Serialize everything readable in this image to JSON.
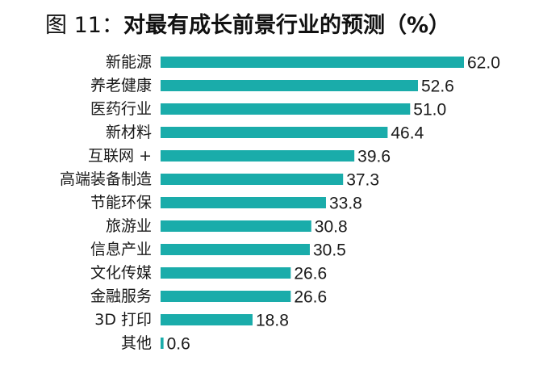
{
  "chart_data": {
    "type": "bar",
    "orientation": "horizontal",
    "title_prefix": "图 11：",
    "title": "对最有成长前景行业的预测（%）",
    "categories": [
      "新能源",
      "养老健康",
      "医药行业",
      "新材料",
      "互联网 +",
      "高端装备制造",
      "节能环保",
      "旅游业",
      "信息产业",
      "文化传媒",
      "金融服务",
      "3D 打印",
      "其他"
    ],
    "values": [
      62.0,
      52.6,
      51.0,
      46.4,
      39.6,
      37.3,
      33.8,
      30.8,
      30.5,
      26.6,
      26.6,
      18.8,
      0.6
    ],
    "value_labels": [
      "62.0",
      "52.6",
      "51.0",
      "46.4",
      "39.6",
      "37.3",
      "33.8",
      "30.8",
      "30.5",
      "26.6",
      "26.6",
      "18.8",
      "0.6"
    ],
    "bar_color": "#1aacaa",
    "xlim": [
      0,
      62
    ],
    "grid": false,
    "legend": "none"
  }
}
